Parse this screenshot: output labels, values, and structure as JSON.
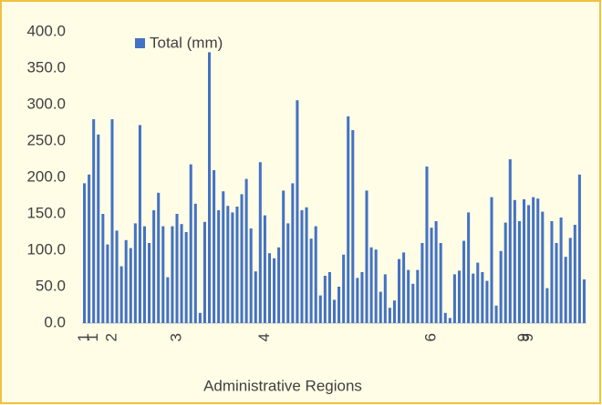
{
  "chart_data": {
    "type": "bar",
    "x_label": "Administrative Regions",
    "legend": "Total (mm)",
    "legend_position": "top-left",
    "color": "#4472c4",
    "grid": false,
    "ylim": [
      0,
      400
    ],
    "yticks": [
      {
        "value": 0,
        "label": "0.0"
      },
      {
        "value": 50,
        "label": "50.0"
      },
      {
        "value": 100,
        "label": "100.0"
      },
      {
        "value": 150,
        "label": "150.0"
      },
      {
        "value": 200,
        "label": "200.0"
      },
      {
        "value": 250,
        "label": "250.0"
      },
      {
        "value": 300,
        "label": "300.0"
      },
      {
        "value": 350,
        "label": "350.0"
      },
      {
        "value": 400,
        "label": "400.0"
      }
    ],
    "categories": [
      "1",
      null,
      "1",
      null,
      null,
      null,
      "2",
      null,
      null,
      null,
      null,
      null,
      null,
      null,
      null,
      null,
      null,
      null,
      null,
      null,
      "3",
      null,
      null,
      null,
      null,
      null,
      null,
      null,
      null,
      null,
      null,
      null,
      null,
      null,
      null,
      null,
      null,
      null,
      null,
      "4",
      null,
      null,
      null,
      null,
      null,
      null,
      null,
      null,
      null,
      null,
      null,
      null,
      null,
      null,
      null,
      null,
      null,
      null,
      null,
      null,
      null,
      null,
      null,
      null,
      null,
      null,
      null,
      null,
      null,
      null,
      null,
      null,
      null,
      null,
      null,
      "6",
      null,
      null,
      null,
      null,
      null,
      null,
      null,
      null,
      null,
      null,
      null,
      null,
      null,
      null,
      null,
      null,
      null,
      null,
      null,
      "9",
      "9",
      null,
      null,
      null,
      null,
      null,
      null,
      null,
      null,
      null,
      null,
      null,
      null
    ],
    "values": [
      192,
      204,
      280,
      259,
      150,
      108,
      280,
      127,
      78,
      114,
      103,
      137,
      272,
      133,
      110,
      155,
      179,
      133,
      63,
      133,
      150,
      136,
      125,
      218,
      164,
      14,
      139,
      372,
      210,
      155,
      181,
      161,
      152,
      160,
      177,
      198,
      130,
      71,
      221,
      148,
      96,
      89,
      104,
      182,
      137,
      192,
      306,
      155,
      159,
      116,
      133,
      38,
      65,
      70,
      32,
      50,
      94,
      284,
      265,
      62,
      70,
      182,
      104,
      101,
      43,
      67,
      21,
      31,
      88,
      97,
      73,
      54,
      73,
      110,
      215,
      131,
      140,
      110,
      14,
      7,
      67,
      72,
      113,
      152,
      68,
      83,
      70,
      58,
      173,
      24,
      99,
      138,
      225,
      169,
      140,
      170,
      162,
      173,
      171,
      153,
      48,
      140,
      110,
      145,
      91,
      117,
      135,
      204,
      60
    ]
  }
}
